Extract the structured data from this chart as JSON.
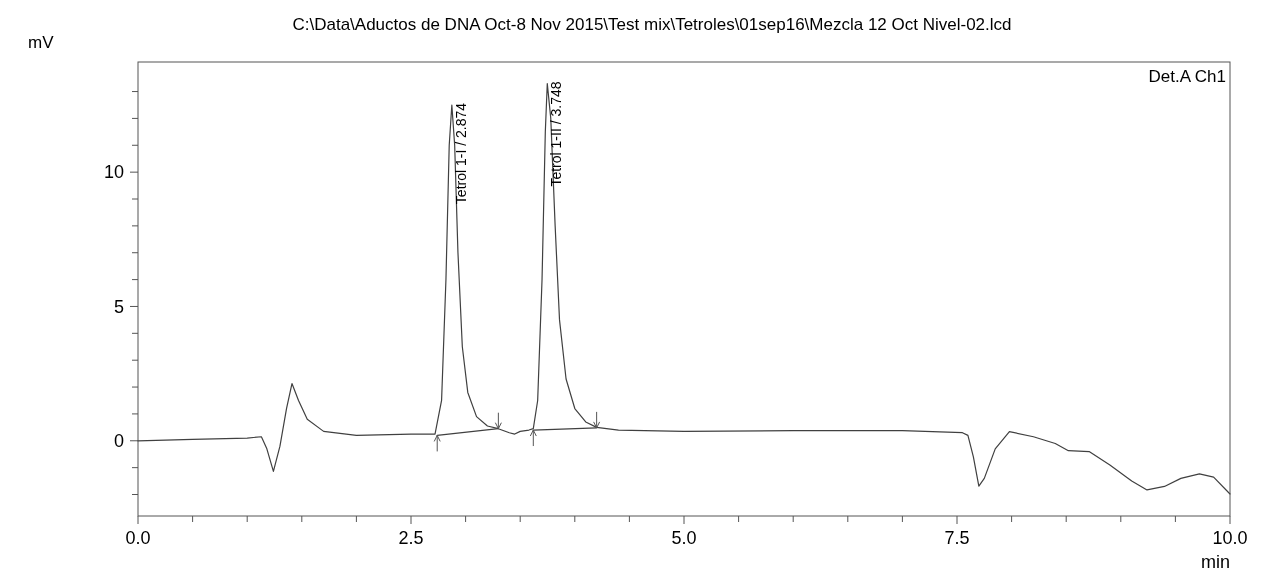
{
  "chart_data": {
    "type": "line",
    "title": "C:\\Data\\Aductos de DNA Oct-8 Nov 2015\\Test mix\\Tetroles\\01sep16\\Mezcla 12 Oct Nivel-02.lcd",
    "xlabel": "min",
    "ylabel": "mV",
    "xlim": [
      0,
      10
    ],
    "ylim": [
      -2.8,
      14.1
    ],
    "xticks": [
      {
        "value": 0,
        "label": "0.0"
      },
      {
        "value": 0.5,
        "label": null
      },
      {
        "value": 1,
        "label": null
      },
      {
        "value": 1.5,
        "label": null
      },
      {
        "value": 2,
        "label": null
      },
      {
        "value": 2.5,
        "label": "2.5"
      },
      {
        "value": 3,
        "label": null
      },
      {
        "value": 3.5,
        "label": null
      },
      {
        "value": 4,
        "label": null
      },
      {
        "value": 4.5,
        "label": null
      },
      {
        "value": 5,
        "label": "5.0"
      },
      {
        "value": 5.5,
        "label": null
      },
      {
        "value": 6,
        "label": null
      },
      {
        "value": 6.5,
        "label": null
      },
      {
        "value": 7,
        "label": null
      },
      {
        "value": 7.5,
        "label": "7.5"
      },
      {
        "value": 8,
        "label": null
      },
      {
        "value": 8.5,
        "label": null
      },
      {
        "value": 9,
        "label": null
      },
      {
        "value": 9.5,
        "label": null
      },
      {
        "value": 10,
        "label": "10.0"
      }
    ],
    "yticks": [
      {
        "value": -2,
        "label": null
      },
      {
        "value": -1,
        "label": null
      },
      0,
      {
        "value": 1,
        "label": null
      },
      {
        "value": 2,
        "label": null
      },
      {
        "value": 3,
        "label": null
      },
      {
        "value": 4,
        "label": null
      },
      5,
      {
        "value": 6,
        "label": null
      },
      {
        "value": 7,
        "label": null
      },
      {
        "value": 8,
        "label": null
      },
      {
        "value": 9,
        "label": null
      },
      10,
      {
        "value": 11,
        "label": null
      },
      {
        "value": 12,
        "label": null
      },
      {
        "value": 13,
        "label": null
      }
    ],
    "annotations": [
      "Det.A Ch1",
      {
        "text": "Tetrol 1-I / 2.874",
        "x": 2.874,
        "y": 12.5
      },
      {
        "text": "Tetrol 1-II / 3.748",
        "x": 3.748,
        "y": 13.3
      }
    ],
    "series": [
      {
        "color": "#404040",
        "x": [
          0,
          0.5,
          1.0,
          1.13,
          1.18,
          1.24,
          1.3,
          1.36,
          1.41,
          1.47,
          1.55,
          1.7,
          2.0,
          2.5,
          2.72,
          2.78,
          2.82,
          2.85,
          2.874,
          2.9,
          2.93,
          2.97,
          3.02,
          3.1,
          3.2,
          3.3,
          3.4,
          3.45,
          3.5,
          3.58,
          3.62,
          3.66,
          3.7,
          3.73,
          3.748,
          3.78,
          3.82,
          3.86,
          3.92,
          4.0,
          4.1,
          4.2,
          4.4,
          5.0,
          6.0,
          7.0,
          7.55,
          7.6,
          7.65,
          7.7,
          7.75,
          7.85,
          7.98,
          8.2,
          8.4,
          8.52,
          8.71,
          8.9,
          9.1,
          9.24,
          9.4,
          9.55,
          9.72,
          9.85,
          10.0
        ],
        "values": [
          0,
          0.05,
          0.1,
          0.15,
          -0.3,
          -1.14,
          -0.2,
          1.2,
          2.13,
          1.5,
          0.8,
          0.35,
          0.2,
          0.25,
          0.25,
          1.5,
          6,
          11,
          12.5,
          11,
          7,
          3.5,
          1.8,
          0.9,
          0.55,
          0.45,
          0.3,
          0.25,
          0.35,
          0.4,
          0.45,
          1.5,
          6,
          11.5,
          13.3,
          12,
          8,
          4.5,
          2.3,
          1.2,
          0.7,
          0.5,
          0.4,
          0.35,
          0.38,
          0.38,
          0.3,
          0.2,
          -0.6,
          -1.69,
          -1.4,
          -0.3,
          0.34,
          0.15,
          -0.1,
          -0.37,
          -0.4,
          -0.9,
          -1.5,
          -1.83,
          -1.7,
          -1.4,
          -1.23,
          -1.35,
          -1.98
        ]
      },
      {
        "color": "#404040",
        "x": [
          2.74,
          3.3
        ],
        "values": [
          0.2,
          0.45
        ]
      },
      {
        "color": "#404040",
        "x": [
          3.62,
          4.2
        ],
        "values": [
          0.4,
          0.48
        ]
      }
    ]
  }
}
